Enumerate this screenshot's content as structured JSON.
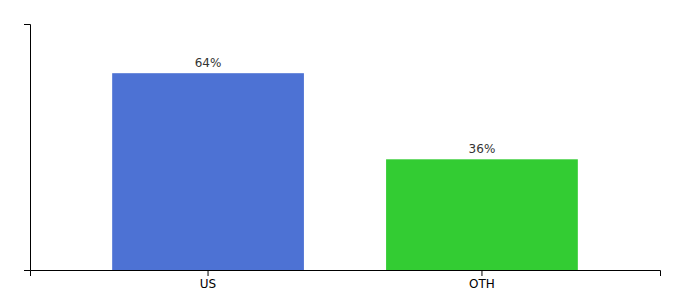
{
  "chart_data": {
    "type": "bar",
    "categories": [
      "US",
      "OTH"
    ],
    "values": [
      64,
      36
    ],
    "value_labels": [
      "64%",
      "36%"
    ],
    "colors": [
      "#4d72d4",
      "#33cc33"
    ],
    "ylim": [
      0,
      80
    ],
    "grid": false,
    "data_labels": true,
    "tick_labels": "x"
  }
}
